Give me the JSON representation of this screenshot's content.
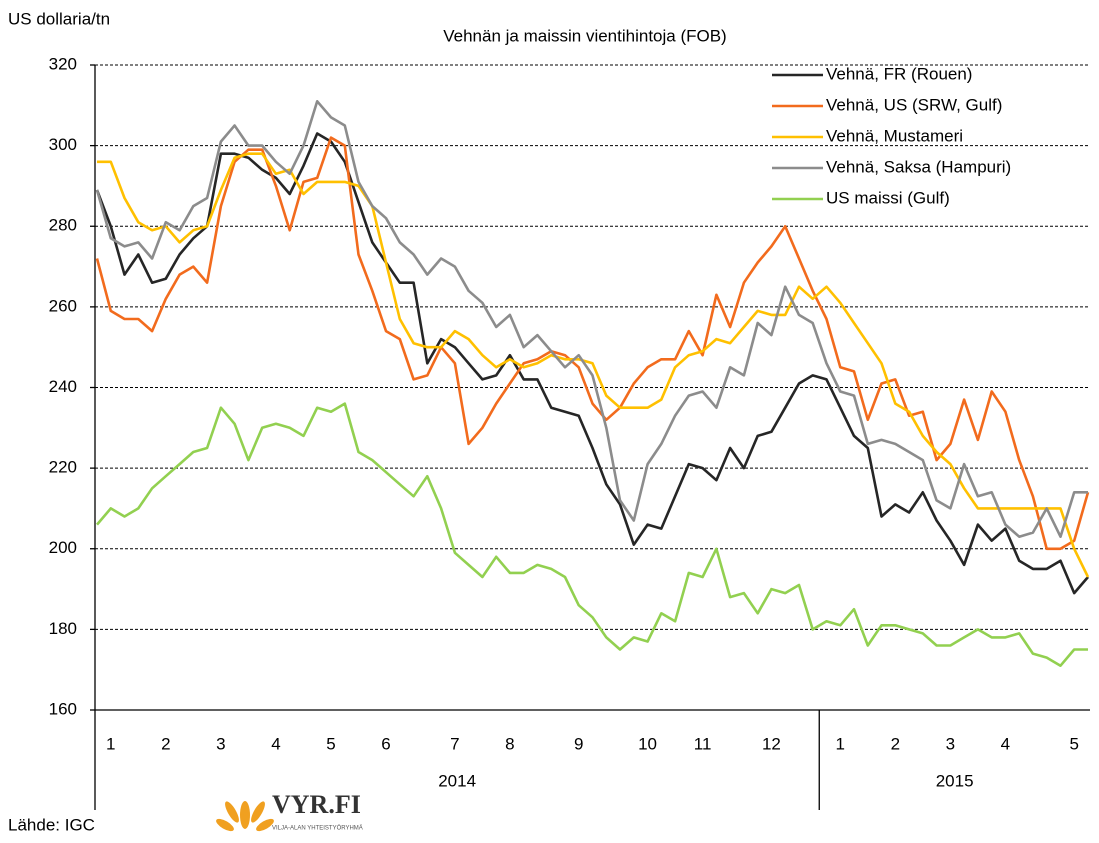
{
  "chart_data": {
    "type": "line",
    "title": "Vehnän  ja  maissin  vientihintoja  (FOB)",
    "y_label": "US dollaria/tn",
    "source": "Lähde: IGC",
    "logo": "VYR.FI",
    "logo_sub": "VILJA-ALAN YHTEISTYÖRYHMÄ",
    "categories": [
      null,
      "1",
      null,
      null,
      null,
      "2",
      null,
      null,
      null,
      "3",
      null,
      null,
      null,
      "4",
      null,
      null,
      null,
      "5",
      null,
      null,
      null,
      "6",
      null,
      null,
      null,
      null,
      "7",
      null,
      null,
      null,
      "8",
      null,
      null,
      null,
      null,
      "9",
      null,
      null,
      null,
      null,
      "10",
      null,
      null,
      null,
      "11",
      null,
      null,
      null,
      null,
      "12",
      null,
      null,
      null,
      null,
      "1",
      null,
      null,
      null,
      "2",
      null,
      null,
      null,
      "3",
      null,
      null,
      null,
      "4",
      null,
      null,
      null,
      null,
      "5",
      null
    ],
    "year_labels": [
      "2014",
      "2015"
    ],
    "ylim": [
      160,
      320
    ],
    "yticks": [
      160,
      180,
      200,
      220,
      240,
      260,
      280,
      300,
      320
    ],
    "grid": true,
    "legend": "top-right",
    "series": [
      {
        "name": "Vehnä, FR (Rouen)",
        "color": "#262626",
        "values": [
          289,
          280,
          268,
          273,
          266,
          267,
          273,
          277,
          280,
          298,
          298,
          297,
          294,
          292,
          288,
          295,
          303,
          301,
          296,
          286,
          276,
          271,
          266,
          266,
          246,
          252,
          250,
          246,
          242,
          243,
          248,
          242,
          242,
          235,
          234,
          233,
          225,
          216,
          211,
          201,
          206,
          205,
          213,
          221,
          220,
          217,
          225,
          220,
          228,
          229,
          235,
          241,
          243,
          242,
          235,
          228,
          225,
          208,
          211,
          209,
          214,
          207,
          202,
          196,
          206,
          202,
          205,
          197,
          195,
          195,
          197,
          189,
          193
        ]
      },
      {
        "name": "Vehnä, US (SRW, Gulf)",
        "color": "#f26b1d",
        "values": [
          272,
          259,
          257,
          257,
          254,
          262,
          268,
          270,
          266,
          285,
          296,
          299,
          299,
          290,
          279,
          291,
          292,
          302,
          300,
          273,
          264,
          254,
          252,
          242,
          243,
          250,
          246,
          226,
          230,
          236,
          241,
          246,
          247,
          249,
          248,
          245,
          236,
          232,
          235,
          241,
          245,
          247,
          247,
          254,
          248,
          263,
          255,
          266,
          271,
          275,
          280,
          272,
          264,
          257,
          245,
          244,
          232,
          241,
          242,
          233,
          234,
          222,
          226,
          237,
          227,
          239,
          234,
          222,
          213,
          200,
          200,
          202,
          214
        ]
      },
      {
        "name": "Vehnä, Mustameri",
        "color": "#ffc000",
        "values": [
          296,
          296,
          287,
          281,
          279,
          280,
          276,
          279,
          280,
          289,
          297,
          298,
          298,
          293,
          294,
          288,
          291,
          291,
          291,
          290,
          285,
          271,
          257,
          251,
          250,
          250,
          254,
          252,
          248,
          245,
          247,
          245,
          246,
          248,
          247,
          247,
          246,
          238,
          235,
          235,
          235,
          237,
          245,
          248,
          249,
          252,
          251,
          255,
          259,
          258,
          258,
          265,
          262,
          265,
          261,
          256,
          251,
          246,
          236,
          234,
          228,
          224,
          221,
          215,
          210,
          210,
          210,
          210,
          210,
          210,
          210,
          200,
          193
        ]
      },
      {
        "name": "Vehnä, Saksa (Hampuri)",
        "color": "#8c8c8c",
        "values": [
          289,
          277,
          275,
          276,
          272,
          281,
          279,
          285,
          287,
          301,
          305,
          300,
          300,
          296,
          293,
          300,
          311,
          307,
          305,
          291,
          285,
          282,
          276,
          273,
          268,
          272,
          270,
          264,
          261,
          255,
          258,
          250,
          253,
          249,
          245,
          248,
          243,
          230,
          212,
          207,
          221,
          226,
          233,
          238,
          239,
          235,
          245,
          243,
          256,
          253,
          265,
          258,
          256,
          246,
          239,
          238,
          226,
          227,
          226,
          224,
          222,
          212,
          210,
          221,
          213,
          214,
          206,
          203,
          204,
          210,
          203,
          214,
          214
        ]
      },
      {
        "name": "US maissi (Gulf)",
        "color": "#92d050",
        "values": [
          206,
          210,
          208,
          210,
          215,
          218,
          221,
          224,
          225,
          235,
          231,
          222,
          230,
          231,
          230,
          228,
          235,
          234,
          236,
          224,
          222,
          219,
          216,
          213,
          218,
          210,
          199,
          196,
          193,
          198,
          194,
          194,
          196,
          195,
          193,
          186,
          183,
          178,
          175,
          178,
          177,
          184,
          182,
          194,
          193,
          200,
          188,
          189,
          184,
          190,
          189,
          191,
          180,
          182,
          181,
          185,
          176,
          181,
          181,
          180,
          179,
          176,
          176,
          178,
          180,
          178,
          178,
          179,
          174,
          173,
          171,
          175,
          175
        ]
      }
    ]
  }
}
